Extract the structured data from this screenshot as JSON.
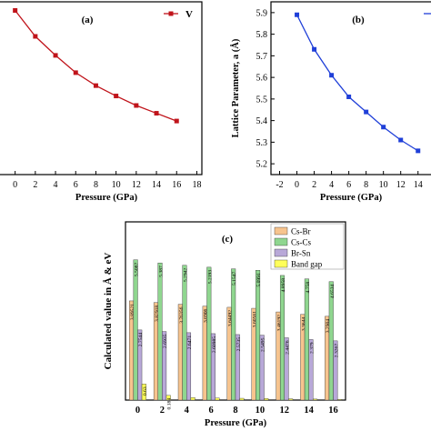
{
  "chart_data": [
    {
      "type": "line",
      "panel_label": "(a)",
      "xlabel": "Pressure (GPa)",
      "ylabel": "",
      "xticks": [
        0,
        2,
        4,
        6,
        8,
        10,
        12,
        14,
        16,
        18
      ],
      "xlim": [
        -1.5,
        18.5
      ],
      "ylim": [
        0,
        1
      ],
      "legend": {
        "placement": "top-right",
        "entries": [
          "V"
        ]
      },
      "series": [
        {
          "name": "V",
          "color": "#c0141b",
          "x": [
            0,
            2,
            4,
            6,
            8,
            10,
            12,
            14,
            16
          ],
          "y": [
            0.95,
            0.8,
            0.69,
            0.59,
            0.515,
            0.455,
            0.4,
            0.355,
            0.31
          ]
        }
      ]
    },
    {
      "type": "line",
      "panel_label": "(b)",
      "xlabel": "Pressure (GPa)",
      "ylabel": "Lattice Parameter, a (Å)",
      "xticks": [
        -2,
        0,
        2,
        4,
        6,
        8,
        10,
        12,
        14
      ],
      "xtick_labels": [
        "-2",
        "0",
        "2",
        "4",
        "6",
        "8",
        "10",
        "12",
        "14"
      ],
      "yticks": [
        5.2,
        5.3,
        5.4,
        5.5,
        5.6,
        5.7,
        5.8,
        5.9
      ],
      "xlim": [
        -3,
        15.5
      ],
      "ylim": [
        5.15,
        5.95
      ],
      "legend": {
        "placement": "top-right"
      },
      "series": [
        {
          "color": "#1f3fd8",
          "x": [
            0,
            2,
            4,
            6,
            8,
            10,
            12,
            14
          ],
          "y": [
            5.89,
            5.73,
            5.61,
            5.51,
            5.44,
            5.37,
            5.31,
            5.26
          ]
        }
      ]
    },
    {
      "type": "bar",
      "panel_label": "(c)",
      "xlabel": "Pressure (GPa)",
      "ylabel": "Calculated value in Å & eV",
      "categories": [
        "0",
        "2",
        "4",
        "6",
        "8",
        "10",
        "12",
        "14",
        "16"
      ],
      "ylim": [
        0,
        7
      ],
      "legend": {
        "placement": "top-right"
      },
      "series": [
        {
          "name": "Cs-Br",
          "color": "#f7c48e",
          "values": [
            3.89521,
            3.82918,
            3.76356,
            3.6906,
            3.64492,
            3.60561,
            3.46192,
            3.3644,
            3.2904
          ],
          "labels": [
            "3.89521",
            "3.82918",
            "3.76356",
            "3.6906",
            "3.64492",
            "3.60561",
            "3.46192",
            "3.3644",
            "3.2904"
          ]
        },
        {
          "name": "Cs-Cs",
          "color": "#8fd68f",
          "values": [
            5.5087,
            5.387,
            5.2942,
            5.2193,
            5.1547,
            5.0991,
            4.8958,
            4.758,
            4.6534
          ],
          "labels": [
            "5.5087",
            "5.387",
            "5.2942",
            "5.2193",
            "5.1547",
            "5.0991",
            "4.8958",
            "4.758",
            "4.6534"
          ]
        },
        {
          "name": "Br-Sn",
          "color": "#b8a8d8",
          "values": [
            2.7544,
            2.6935,
            2.6471,
            2.6098,
            2.5735,
            2.5495,
            2.4476,
            2.379,
            2.3267
          ],
          "labels": [
            "2.7544",
            "2.6935",
            "2.6471",
            "2.60985",
            "2.5735",
            "2.5495",
            "2.4476",
            "2.379",
            "2.3267"
          ]
        },
        {
          "name": "Band gap",
          "color": "#ffff5a",
          "values": [
            0.63,
            0.184,
            0.1,
            0.08,
            0.07,
            0.06,
            0.05,
            0.04,
            0.03
          ],
          "labels": [
            "0.63",
            "0.184",
            "",
            "",
            "",
            "",
            "",
            "",
            ""
          ]
        }
      ]
    }
  ]
}
